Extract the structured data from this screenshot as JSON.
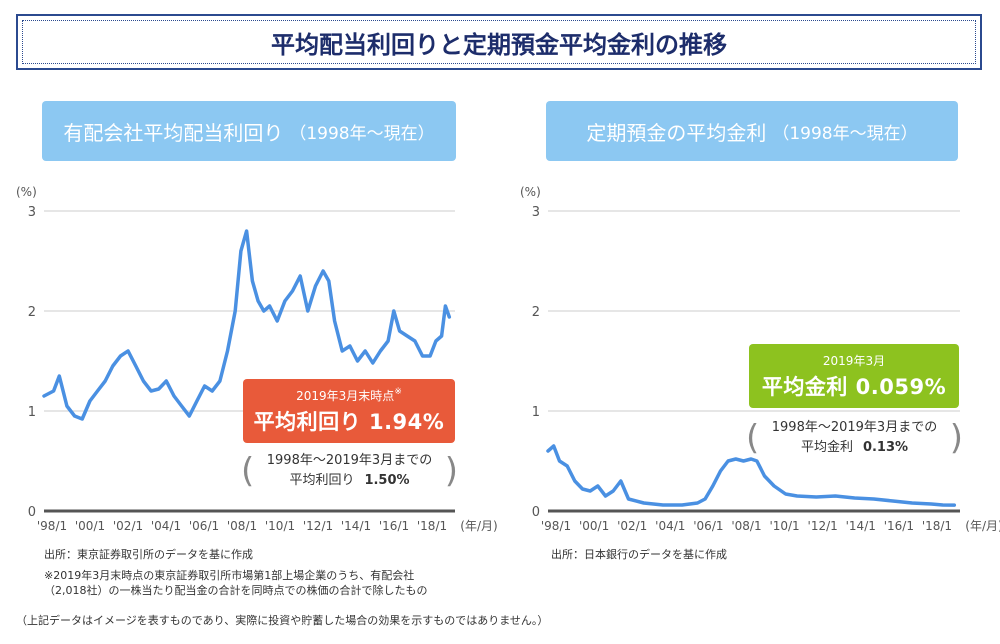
{
  "page_title": "平均配当利回りと定期預金平均金利の推移",
  "panels": {
    "left": {
      "header_main": "有配会社平均配当利回り",
      "header_sub": "（1998年〜現在）",
      "callout_small": "2019年3月末時点",
      "callout_mark": "※",
      "callout_big": "平均利回り 1.94%",
      "avg_line1": "1998年〜2019年3月までの",
      "avg_line2_label": "平均利回り",
      "avg_line2_value": "1.50%",
      "source": "出所：東京証券取引所のデータを基に作成",
      "note_line1": "※2019年3月末時点の東京証券取引所市場第1部上場企業のうち、有配会社",
      "note_line2": "（2,018社）の一株当たり配当金の合計を同時点での株価の合計で除したもの"
    },
    "right": {
      "header_main": "定期預金の平均金利",
      "header_sub": "（1998年〜現在）",
      "callout_small": "2019年3月",
      "callout_big": "平均金利 0.059%",
      "avg_line1": "1998年〜2019年3月までの",
      "avg_line2_label": "平均金利",
      "avg_line2_value": "0.13%",
      "source": "出所：日本銀行のデータを基に作成"
    }
  },
  "disclaimer": "（上記データはイメージを表すものであり、実際に投資や貯蓄した場合の効果を示すものではありません。）",
  "colors": {
    "line": "#4a90e2",
    "header": "#8cc8f2",
    "red": "#e85a3a",
    "green": "#8dc21f",
    "title_border": "#2b4a8f"
  },
  "chart_data": [
    {
      "type": "line",
      "xlabel": "(年/月)",
      "ylabel": "(%)",
      "ylim": [
        0,
        3
      ],
      "y_ticks": [
        "0",
        "1",
        "2",
        "3"
      ],
      "x_ticks": [
        "'98/1",
        "'00/1",
        "'02/1",
        "'04/1",
        "'06/1",
        "'08/1",
        "'10/1",
        "'12/1",
        "'14/1",
        "'16/1",
        "'18/1"
      ],
      "grid": true,
      "x": [
        1998.0,
        1998.5,
        1998.8,
        1999.2,
        1999.6,
        2000.0,
        2000.4,
        2000.8,
        2001.2,
        2001.6,
        2002.0,
        2002.4,
        2002.8,
        2003.2,
        2003.6,
        2004.0,
        2004.4,
        2004.8,
        2005.2,
        2005.6,
        2006.0,
        2006.4,
        2006.8,
        2007.2,
        2007.6,
        2008.0,
        2008.3,
        2008.6,
        2008.9,
        2009.2,
        2009.5,
        2009.8,
        2010.2,
        2010.6,
        2011.0,
        2011.4,
        2011.8,
        2012.2,
        2012.6,
        2012.9,
        2013.2,
        2013.6,
        2014.0,
        2014.4,
        2014.8,
        2015.2,
        2015.6,
        2016.0,
        2016.3,
        2016.6,
        2017.0,
        2017.4,
        2017.8,
        2018.2,
        2018.5,
        2018.8,
        2019.0,
        2019.2
      ],
      "series": [
        {
          "values": [
            1.15,
            1.2,
            1.35,
            1.05,
            0.95,
            0.92,
            1.1,
            1.2,
            1.3,
            1.45,
            1.55,
            1.6,
            1.45,
            1.3,
            1.2,
            1.22,
            1.3,
            1.15,
            1.05,
            0.95,
            1.1,
            1.25,
            1.2,
            1.3,
            1.6,
            2.0,
            2.6,
            2.8,
            2.3,
            2.1,
            2.0,
            2.05,
            1.9,
            2.1,
            2.2,
            2.35,
            2.0,
            2.25,
            2.4,
            2.3,
            1.9,
            1.6,
            1.65,
            1.5,
            1.6,
            1.48,
            1.6,
            1.7,
            2.0,
            1.8,
            1.75,
            1.7,
            1.55,
            1.55,
            1.7,
            1.75,
            2.05,
            1.94
          ]
        }
      ]
    },
    {
      "type": "line",
      "xlabel": "(年/月)",
      "ylabel": "(%)",
      "ylim": [
        0,
        3
      ],
      "y_ticks": [
        "0",
        "1",
        "2",
        "3"
      ],
      "x_ticks": [
        "'98/1",
        "'00/1",
        "'02/1",
        "'04/1",
        "'06/1",
        "'08/1",
        "'10/1",
        "'12/1",
        "'14/1",
        "'16/1",
        "'18/1"
      ],
      "grid": true,
      "x": [
        1998.0,
        1998.3,
        1998.6,
        1999.0,
        1999.4,
        1999.8,
        2000.2,
        2000.6,
        2001.0,
        2001.4,
        2001.8,
        2002.2,
        2003.0,
        2004.0,
        2005.0,
        2005.8,
        2006.2,
        2006.6,
        2007.0,
        2007.4,
        2007.8,
        2008.2,
        2008.6,
        2008.9,
        2009.3,
        2009.8,
        2010.4,
        2011.0,
        2012.0,
        2013.0,
        2014.0,
        2015.0,
        2016.0,
        2017.0,
        2018.0,
        2018.6,
        2019.2
      ],
      "series": [
        {
          "values": [
            0.6,
            0.65,
            0.5,
            0.45,
            0.3,
            0.22,
            0.2,
            0.25,
            0.15,
            0.2,
            0.3,
            0.12,
            0.08,
            0.06,
            0.06,
            0.08,
            0.12,
            0.25,
            0.4,
            0.5,
            0.52,
            0.5,
            0.52,
            0.5,
            0.35,
            0.25,
            0.17,
            0.15,
            0.14,
            0.15,
            0.13,
            0.12,
            0.1,
            0.08,
            0.07,
            0.06,
            0.059
          ]
        }
      ]
    }
  ]
}
